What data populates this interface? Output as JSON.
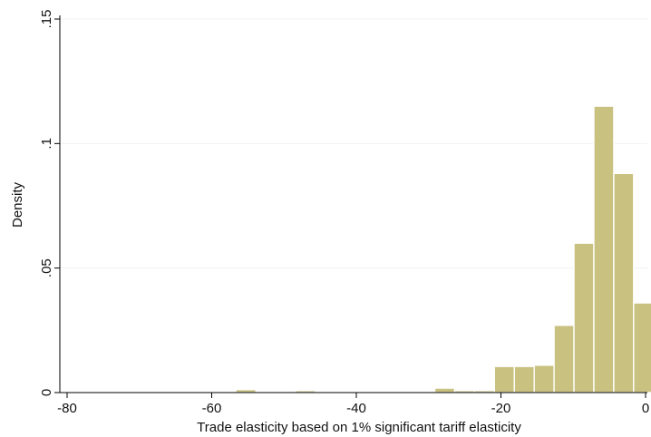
{
  "chart_data": {
    "type": "bar",
    "subtype": "histogram",
    "title": "",
    "xlabel": "Trade elasticity based on 1% significant tariff elasticity",
    "ylabel": "Density",
    "xlim": [
      -80,
      0
    ],
    "ylim": [
      0,
      0.15
    ],
    "x_ticks": [
      -80,
      -60,
      -40,
      -20,
      0
    ],
    "y_ticks": [
      0,
      0.05,
      0.1,
      0.15
    ],
    "x_tick_labels": [
      "-80",
      "-60",
      "-40",
      "-20",
      "0"
    ],
    "y_tick_labels": [
      "0",
      ".05",
      ".1",
      ".15"
    ],
    "grid": "horizontal",
    "legend": "none",
    "bar_fill": "#c9c180",
    "bar_edge": "#ffffff",
    "bin_width": 2.75,
    "bins": [
      {
        "x0": -70.4,
        "x1": -67.65,
        "density": 0.0004
      },
      {
        "x0": -56.65,
        "x1": -53.9,
        "density": 0.0012
      },
      {
        "x0": -48.4,
        "x1": -45.65,
        "density": 0.0008
      },
      {
        "x0": -45.65,
        "x1": -42.9,
        "density": 0.0004
      },
      {
        "x0": -37.4,
        "x1": -34.65,
        "density": 0.0004
      },
      {
        "x0": -31.9,
        "x1": -29.15,
        "density": 0.0004
      },
      {
        "x0": -29.15,
        "x1": -26.4,
        "density": 0.0018
      },
      {
        "x0": -26.4,
        "x1": -23.65,
        "density": 0.0008
      },
      {
        "x0": -23.65,
        "x1": -20.9,
        "density": 0.0008
      },
      {
        "x0": -20.9,
        "x1": -18.15,
        "density": 0.0105
      },
      {
        "x0": -18.15,
        "x1": -15.4,
        "density": 0.0105
      },
      {
        "x0": -15.4,
        "x1": -12.65,
        "density": 0.011
      },
      {
        "x0": -12.65,
        "x1": -9.9,
        "density": 0.027
      },
      {
        "x0": -9.9,
        "x1": -7.15,
        "density": 0.06
      },
      {
        "x0": -7.15,
        "x1": -4.4,
        "density": 0.115
      },
      {
        "x0": -4.4,
        "x1": -1.65,
        "density": 0.088
      },
      {
        "x0": -1.65,
        "x1": 1.1,
        "density": 0.036
      }
    ]
  }
}
